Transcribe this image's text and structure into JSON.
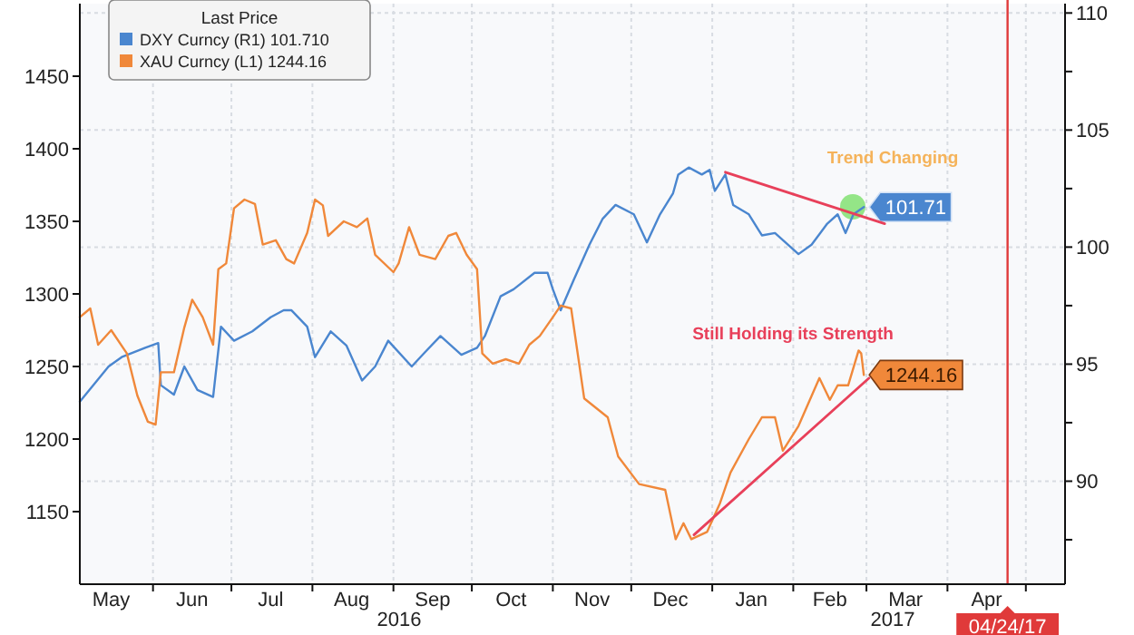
{
  "chart_data": {
    "type": "line",
    "legend_title": "Last Price",
    "legend": "top left",
    "grid": true,
    "xlim": [
      "2016-05-04",
      "2017-05-16"
    ],
    "xticks": [
      {
        "value": "2016-05-16",
        "label": "May"
      },
      {
        "value": "2016-06-01",
        "label": null
      },
      {
        "value": "2016-06-16",
        "label": "Jun"
      },
      {
        "value": "2016-07-01",
        "label": null
      },
      {
        "value": "2016-07-16",
        "label": "Jul"
      },
      {
        "value": "2016-08-01",
        "label": null
      },
      {
        "value": "2016-08-16",
        "label": "Aug"
      },
      {
        "value": "2016-09-01",
        "label": null
      },
      {
        "value": "2016-09-16",
        "label": "Sep"
      },
      {
        "value": "2016-10-01",
        "label": null
      },
      {
        "value": "2016-10-16",
        "label": "Oct"
      },
      {
        "value": "2016-11-01",
        "label": null
      },
      {
        "value": "2016-11-16",
        "label": "Nov"
      },
      {
        "value": "2016-12-01",
        "label": null
      },
      {
        "value": "2016-12-16",
        "label": "Dec"
      },
      {
        "value": "2017-01-01",
        "label": null
      },
      {
        "value": "2017-01-16",
        "label": "Jan"
      },
      {
        "value": "2017-02-01",
        "label": null
      },
      {
        "value": "2017-02-15",
        "label": "Feb"
      },
      {
        "value": "2017-03-01",
        "label": null
      },
      {
        "value": "2017-03-16",
        "label": "Mar"
      },
      {
        "value": "2017-04-01",
        "label": null
      },
      {
        "value": "2017-04-16",
        "label": "Apr"
      },
      {
        "value": "2017-05-01",
        "label": null
      }
    ],
    "ylim": [
      1100,
      1500
    ],
    "yticks": [
      1150,
      1200,
      1250,
      1300,
      1350,
      1400,
      1450
    ],
    "y2lim": [
      85.6,
      110.4
    ],
    "y2ticks": [
      {
        "value": 87.5,
        "label": null
      },
      90,
      {
        "value": 92.5,
        "label": null
      },
      95,
      {
        "value": 97.5,
        "label": null
      },
      100,
      {
        "value": 102.5,
        "label": null
      },
      105,
      {
        "value": 107.5,
        "label": null
      },
      110
    ],
    "series": [
      {
        "name": "DXY Curncy (R1) 101.710",
        "color": "#4a86cf",
        "axis": "y2",
        "x": [
          "2016-05-04",
          "2016-05-15",
          "2016-05-20",
          "2016-05-29",
          "2016-06-03",
          "2016-06-04",
          "2016-06-09",
          "2016-06-13",
          "2016-06-18",
          "2016-06-24",
          "2016-06-27",
          "2016-07-02",
          "2016-07-09",
          "2016-07-16",
          "2016-07-21",
          "2016-07-24",
          "2016-07-30",
          "2016-08-02",
          "2016-08-08",
          "2016-08-14",
          "2016-08-20",
          "2016-08-25",
          "2016-08-30",
          "2016-09-08",
          "2016-09-13",
          "2016-09-19",
          "2016-09-27",
          "2016-10-03",
          "2016-10-06",
          "2016-10-12",
          "2016-10-17",
          "2016-10-25",
          "2016-10-30",
          "2016-11-01",
          "2016-11-04",
          "2016-11-09",
          "2016-11-15",
          "2016-11-20",
          "2016-11-25",
          "2016-12-02",
          "2016-12-07",
          "2016-12-12",
          "2016-12-17",
          "2016-12-19",
          "2016-12-23",
          "2016-12-28",
          "2016-12-31",
          "2017-01-02",
          "2017-01-06",
          "2017-01-09",
          "2017-01-15",
          "2017-01-20",
          "2017-01-25",
          "2017-02-03",
          "2017-02-08",
          "2017-02-14",
          "2017-02-18",
          "2017-02-21",
          "2017-02-24",
          "2017-02-28"
        ],
        "values": [
          93.4,
          94.9,
          95.3,
          95.7,
          95.9,
          94.1,
          93.7,
          94.9,
          93.9,
          93.6,
          96.6,
          96.0,
          96.4,
          97.0,
          97.3,
          97.3,
          96.6,
          95.3,
          96.4,
          95.8,
          94.3,
          94.9,
          96.0,
          94.9,
          95.5,
          96.2,
          95.4,
          95.7,
          96.2,
          97.9,
          98.2,
          98.9,
          98.9,
          98.2,
          97.3,
          98.6,
          100.1,
          101.2,
          101.8,
          101.4,
          100.2,
          101.4,
          102.3,
          103.1,
          103.4,
          103.1,
          103.3,
          102.4,
          103.1,
          101.8,
          101.4,
          100.5,
          100.6,
          99.7,
          100.1,
          101.0,
          101.4,
          100.6,
          101.4,
          101.71
        ],
        "value_labels": [
          null,
          null,
          null,
          null,
          null,
          null,
          null,
          null,
          null,
          null,
          null,
          null,
          null,
          null,
          null,
          null,
          null,
          null,
          null,
          null,
          null,
          null,
          null,
          null,
          null,
          null,
          null,
          null,
          null,
          null,
          null,
          null,
          null,
          null,
          null,
          null,
          null,
          null,
          null,
          null,
          null,
          null,
          null,
          null,
          null,
          null,
          null,
          null,
          null,
          null,
          null,
          null,
          null,
          null,
          null,
          null,
          null,
          null,
          null,
          "101.71"
        ]
      },
      {
        "name": "XAU Curncy (L1) 1244.16",
        "color": "#f0883a",
        "x": [
          "2016-05-04",
          "2016-05-08",
          "2016-05-11",
          "2016-05-16",
          "2016-05-22",
          "2016-05-26",
          "2016-05-30",
          "2016-06-02",
          "2016-06-04",
          "2016-06-09",
          "2016-06-13",
          "2016-06-16",
          "2016-06-20",
          "2016-06-24",
          "2016-06-26",
          "2016-06-29",
          "2016-07-02",
          "2016-07-06",
          "2016-07-10",
          "2016-07-13",
          "2016-07-18",
          "2016-07-22",
          "2016-07-25",
          "2016-07-30",
          "2016-08-02",
          "2016-08-05",
          "2016-08-07",
          "2016-08-13",
          "2016-08-18",
          "2016-08-22",
          "2016-08-25",
          "2016-09-01",
          "2016-09-03",
          "2016-09-07",
          "2016-09-11",
          "2016-09-17",
          "2016-09-22",
          "2016-09-25",
          "2016-09-29",
          "2016-10-03",
          "2016-10-05",
          "2016-10-09",
          "2016-10-14",
          "2016-10-19",
          "2016-10-23",
          "2016-10-27",
          "2016-11-01",
          "2016-11-04",
          "2016-11-08",
          "2016-11-13",
          "2016-11-22",
          "2016-11-26",
          "2016-12-04",
          "2016-12-14",
          "2016-12-18",
          "2016-12-21",
          "2016-12-24",
          "2016-12-30",
          "2017-01-04",
          "2017-01-08",
          "2017-01-15",
          "2017-01-20",
          "2017-01-25",
          "2017-01-28",
          "2017-02-03",
          "2017-02-11",
          "2017-02-15",
          "2017-02-18",
          "2017-02-22",
          "2017-02-26",
          "2017-02-27",
          "2017-02-28"
        ],
        "values": [
          1284,
          1290,
          1265,
          1275,
          1259,
          1230,
          1212,
          1210,
          1246,
          1246,
          1277,
          1296,
          1284,
          1265,
          1317,
          1321,
          1359,
          1365,
          1362,
          1334,
          1337,
          1324,
          1321,
          1342,
          1365,
          1361,
          1340,
          1350,
          1346,
          1352,
          1327,
          1315,
          1321,
          1346,
          1327,
          1324,
          1340,
          1342,
          1327,
          1317,
          1259,
          1252,
          1255,
          1252,
          1265,
          1271,
          1284,
          1292,
          1290,
          1228,
          1215,
          1188,
          1169,
          1165,
          1131,
          1142,
          1131,
          1136,
          1156,
          1177,
          1200,
          1215,
          1215,
          1192,
          1209,
          1242,
          1227,
          1237,
          1237,
          1261,
          1259,
          1244.16
        ],
        "value_labels": [
          null,
          null,
          null,
          null,
          null,
          null,
          null,
          null,
          null,
          null,
          null,
          null,
          null,
          null,
          null,
          null,
          null,
          null,
          null,
          null,
          null,
          null,
          null,
          null,
          null,
          null,
          null,
          null,
          null,
          null,
          null,
          null,
          null,
          null,
          null,
          null,
          null,
          null,
          null,
          null,
          null,
          null,
          null,
          null,
          null,
          null,
          null,
          null,
          null,
          null,
          null,
          null,
          null,
          null,
          null,
          null,
          null,
          null,
          null,
          null,
          null,
          null,
          null,
          null,
          null,
          null,
          null,
          null,
          null,
          null,
          null,
          "1244.16"
        ]
      },
      {
        "type": "line",
        "color": "#e8405a",
        "axis": "y2",
        "x": [
          "2017-01-06",
          "2017-03-08"
        ],
        "values": [
          103.2,
          101.0
        ]
      },
      {
        "type": "line",
        "color": "#e8405a",
        "x": [
          "2016-12-25",
          "2017-03-02"
        ],
        "values": [
          1134,
          1242
        ]
      }
    ],
    "ref_lines": [
      {
        "axis": "x",
        "value": "2017-04-24",
        "label": "04/24/17",
        "color": "#e03a3a"
      }
    ],
    "annotations": [
      "Trend Changing",
      "Still Holding its Strength",
      "2016",
      "2017"
    ]
  }
}
